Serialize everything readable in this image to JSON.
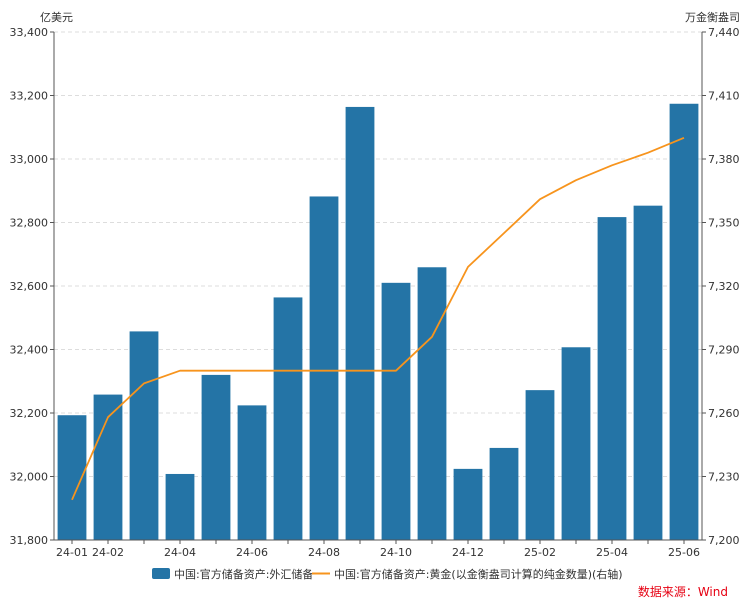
{
  "chart_data": {
    "type": "bar",
    "categories": [
      "24-01",
      "24-02",
      "24-03",
      "24-04",
      "24-05",
      "24-06",
      "24-07",
      "24-08",
      "24-09",
      "24-10",
      "24-11",
      "24-12",
      "25-01",
      "25-02",
      "25-03",
      "25-04",
      "25-05",
      "25-06"
    ],
    "x_tick_labels": [
      "24-01",
      "24-02",
      "24-04",
      "24-06",
      "24-08",
      "24-10",
      "24-12",
      "25-02",
      "25-04",
      "25-06"
    ],
    "series": [
      {
        "name": "中国:官方储备资产:外汇储备",
        "type": "bar",
        "axis": "left",
        "color": "#2474a6",
        "values": [
          32193,
          32258,
          32457,
          32008,
          32320,
          32224,
          32564,
          32882,
          33164,
          32610,
          32659,
          32024,
          32090,
          32272,
          32407,
          32817,
          32853,
          33174
        ]
      },
      {
        "name": "中国:官方储备资产:黄金(以金衡盎司计算的纯金数量)(右轴)",
        "type": "line",
        "axis": "right",
        "color": "#f7941d",
        "values": [
          7219,
          7258,
          7274,
          7280,
          7280,
          7280,
          7280,
          7280,
          7280,
          7280,
          7296,
          7329,
          7345,
          7361,
          7370,
          7377,
          7383,
          7390
        ]
      }
    ],
    "left_axis": {
      "label": "亿美元",
      "range": [
        31800,
        33400
      ],
      "ticks": [
        31800,
        32000,
        32200,
        32400,
        32600,
        32800,
        33000,
        33200,
        33400
      ],
      "tick_labels": [
        "31,800",
        "32,000",
        "32,200",
        "32,400",
        "32,600",
        "32,800",
        "33,000",
        "33,200",
        "33,400"
      ]
    },
    "right_axis": {
      "label": "万金衡盎司",
      "range": [
        7200,
        7440
      ],
      "ticks": [
        7200,
        7230,
        7260,
        7290,
        7320,
        7350,
        7380,
        7410,
        7440
      ],
      "tick_labels": [
        "7,200",
        "7,230",
        "7,260",
        "7,290",
        "7,320",
        "7,350",
        "7,380",
        "7,410",
        "7,440"
      ]
    },
    "grid": true,
    "legend_position": "bottom"
  },
  "source": {
    "label": "数据来源：Wind",
    "color": "#e60012"
  }
}
